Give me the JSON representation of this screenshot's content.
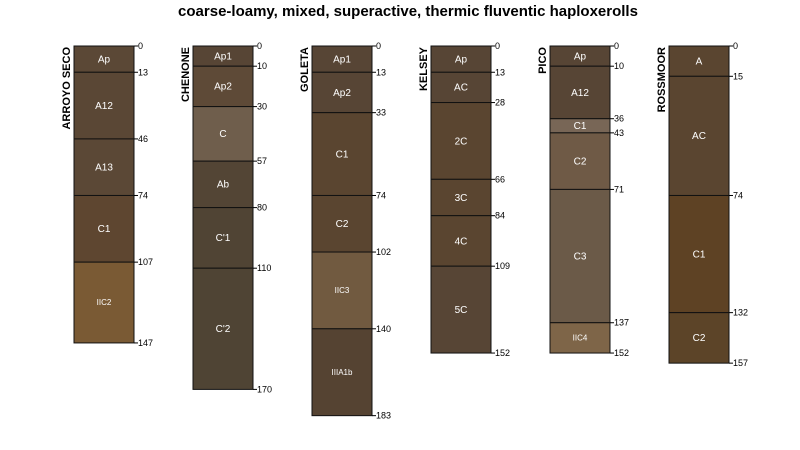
{
  "title": "coarse-loamy, mixed, superactive, thermic fluventic haploxerolls",
  "profiles": [
    {
      "name": "ARROYO SECO",
      "horizons": [
        {
          "name": "Ap",
          "top": 0,
          "bottom": 13,
          "color": "#5b4836"
        },
        {
          "name": "A12",
          "top": 13,
          "bottom": 46,
          "color": "#5a4735"
        },
        {
          "name": "A13",
          "top": 46,
          "bottom": 74,
          "color": "#5b4836"
        },
        {
          "name": "C1",
          "top": 74,
          "bottom": 107,
          "color": "#5e4630"
        },
        {
          "name": "IIC2",
          "top": 107,
          "bottom": 147,
          "color": "#7a5a34"
        }
      ]
    },
    {
      "name": "CHENONE",
      "horizons": [
        {
          "name": "Ap1",
          "top": 0,
          "bottom": 10,
          "color": "#574535"
        },
        {
          "name": "Ap2",
          "top": 10,
          "bottom": 30,
          "color": "#5e4a37"
        },
        {
          "name": "C",
          "top": 30,
          "bottom": 57,
          "color": "#6f5e4c"
        },
        {
          "name": "Ab",
          "top": 57,
          "bottom": 80,
          "color": "#534535"
        },
        {
          "name": "C'1",
          "top": 80,
          "bottom": 110,
          "color": "#504434"
        },
        {
          "name": "C'2",
          "top": 110,
          "bottom": 170,
          "color": "#4f4434"
        }
      ]
    },
    {
      "name": "GOLETA",
      "horizons": [
        {
          "name": "Ap1",
          "top": 0,
          "bottom": 13,
          "color": "#574535"
        },
        {
          "name": "Ap2",
          "top": 13,
          "bottom": 33,
          "color": "#574535"
        },
        {
          "name": "C1",
          "top": 33,
          "bottom": 74,
          "color": "#5a4530"
        },
        {
          "name": "C2",
          "top": 74,
          "bottom": 102,
          "color": "#5a4530"
        },
        {
          "name": "IIC3",
          "top": 102,
          "bottom": 140,
          "color": "#715a40"
        },
        {
          "name": "IIIA1b",
          "top": 140,
          "bottom": 183,
          "color": "#554332"
        }
      ]
    },
    {
      "name": "KELSEY",
      "horizons": [
        {
          "name": "Ap",
          "top": 0,
          "bottom": 13,
          "color": "#574535"
        },
        {
          "name": "AC",
          "top": 13,
          "bottom": 28,
          "color": "#574535"
        },
        {
          "name": "2C",
          "top": 28,
          "bottom": 66,
          "color": "#5a4530"
        },
        {
          "name": "3C",
          "top": 66,
          "bottom": 84,
          "color": "#5a4530"
        },
        {
          "name": "4C",
          "top": 84,
          "bottom": 109,
          "color": "#5a4530"
        },
        {
          "name": "5C",
          "top": 109,
          "bottom": 152,
          "color": "#574535"
        }
      ]
    },
    {
      "name": "PICO",
      "horizons": [
        {
          "name": "Ap",
          "top": 0,
          "bottom": 10,
          "color": "#574535"
        },
        {
          "name": "A12",
          "top": 10,
          "bottom": 36,
          "color": "#574535"
        },
        {
          "name": "C1",
          "top": 36,
          "bottom": 43,
          "color": "#786656"
        },
        {
          "name": "C2",
          "top": 43,
          "bottom": 71,
          "color": "#6f5a46"
        },
        {
          "name": "C3",
          "top": 71,
          "bottom": 137,
          "color": "#6b5a48"
        },
        {
          "name": "IIC4",
          "top": 137,
          "bottom": 152,
          "color": "#7e6548"
        }
      ]
    },
    {
      "name": "ROSSMOOR",
      "horizons": [
        {
          "name": "A",
          "top": 0,
          "bottom": 15,
          "color": "#5a4530"
        },
        {
          "name": "AC",
          "top": 15,
          "bottom": 74,
          "color": "#5a4530"
        },
        {
          "name": "C1",
          "top": 74,
          "bottom": 132,
          "color": "#5e4224"
        },
        {
          "name": "C2",
          "top": 132,
          "bottom": 157,
          "color": "#5c4428"
        }
      ]
    }
  ]
}
